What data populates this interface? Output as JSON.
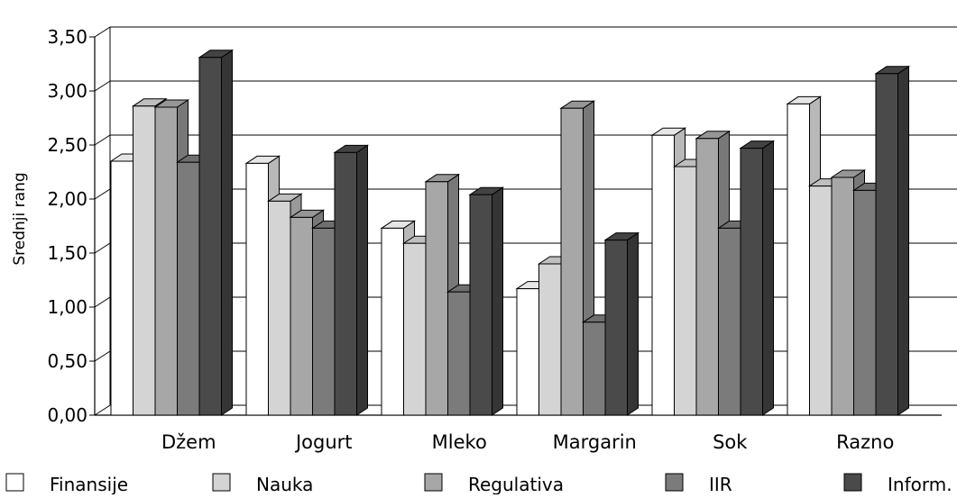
{
  "chart_data": {
    "type": "bar",
    "style": "3d-clustered-column",
    "title": "",
    "xlabel": "",
    "ylabel": "Srednji rang",
    "ylim": [
      0,
      3.5
    ],
    "yticks": [
      "0,00",
      "0,50",
      "1,00",
      "1,50",
      "2,00",
      "2,50",
      "3,00",
      "3,50"
    ],
    "grid": true,
    "legend_position": "bottom",
    "categories": [
      "Džem",
      "Jogurt",
      "Mleko",
      "Margarin",
      "Sok",
      "Razno"
    ],
    "series": [
      {
        "name": "Finansije",
        "color": "#ffffff",
        "values": [
          2.35,
          2.33,
          1.73,
          1.17,
          2.59,
          2.88
        ]
      },
      {
        "name": "Nauka",
        "color": "#d4d4d4",
        "values": [
          2.86,
          1.98,
          1.59,
          1.4,
          2.3,
          2.12
        ]
      },
      {
        "name": "Regulativa",
        "color": "#a7a7a7",
        "values": [
          2.85,
          1.83,
          2.16,
          2.84,
          2.56,
          2.2
        ]
      },
      {
        "name": "IIR",
        "color": "#7b7b7b",
        "values": [
          2.34,
          1.73,
          1.14,
          0.86,
          1.73,
          2.08
        ]
      },
      {
        "name": "Inform.",
        "color": "#4a4a4a",
        "values": [
          3.31,
          2.43,
          2.04,
          1.62,
          2.47,
          3.16
        ]
      }
    ]
  }
}
